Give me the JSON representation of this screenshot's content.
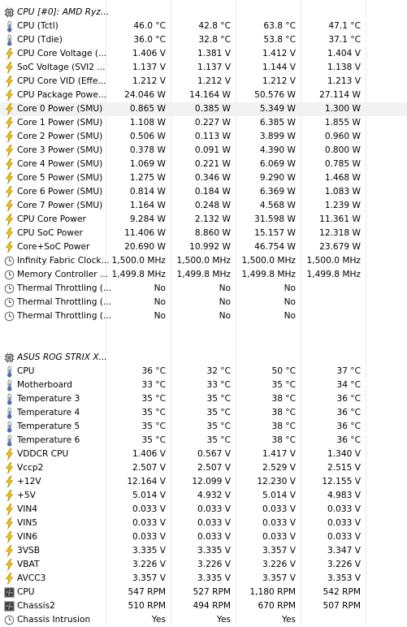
{
  "sections": [
    {
      "title": "CPU [#0]: AMD Ryz...",
      "icon": "chip-icon",
      "rows": [
        {
          "icon": "thermometer-icon",
          "label": "CPU (Tctl)",
          "values": [
            "46.0 °C",
            "42.8 °C",
            "63.8 °C",
            "47.1 °C"
          ]
        },
        {
          "icon": "thermometer-icon",
          "label": "CPU (Tdie)",
          "values": [
            "36.0 °C",
            "32.8 °C",
            "53.8 °C",
            "37.1 °C"
          ]
        },
        {
          "icon": "lightning-icon",
          "label": "CPU Core Voltage (...",
          "values": [
            "1.406 V",
            "1.381 V",
            "1.412 V",
            "1.404 V"
          ]
        },
        {
          "icon": "lightning-icon",
          "label": "SoC Voltage (SVI2 ...",
          "values": [
            "1.137 V",
            "1.137 V",
            "1.144 V",
            "1.138 V"
          ]
        },
        {
          "icon": "lightning-icon",
          "label": "CPU Core VID (Effe...",
          "values": [
            "1.212 V",
            "1.212 V",
            "1.212 V",
            "1.213 V"
          ]
        },
        {
          "icon": "lightning-icon",
          "label": "CPU Package Powe...",
          "values": [
            "24.046 W",
            "14.164 W",
            "50.576 W",
            "27.114 W"
          ]
        },
        {
          "icon": "lightning-icon",
          "label": "Core 0 Power (SMU)",
          "values": [
            "0.865 W",
            "0.385 W",
            "5.349 W",
            "1.300 W"
          ]
        },
        {
          "icon": "lightning-icon",
          "label": "Core 1 Power (SMU)",
          "values": [
            "1.108 W",
            "0.227 W",
            "6.385 W",
            "1.855 W"
          ]
        },
        {
          "icon": "lightning-icon",
          "label": "Core 2 Power (SMU)",
          "values": [
            "0.506 W",
            "0.113 W",
            "3.899 W",
            "0.960 W"
          ]
        },
        {
          "icon": "lightning-icon",
          "label": "Core 3 Power (SMU)",
          "values": [
            "0.378 W",
            "0.091 W",
            "4.390 W",
            "0.800 W"
          ]
        },
        {
          "icon": "lightning-icon",
          "label": "Core 4 Power (SMU)",
          "values": [
            "1.069 W",
            "0.221 W",
            "6.069 W",
            "0.785 W"
          ]
        },
        {
          "icon": "lightning-icon",
          "label": "Core 5 Power (SMU)",
          "values": [
            "1.275 W",
            "0.346 W",
            "9.290 W",
            "1.468 W"
          ]
        },
        {
          "icon": "lightning-icon",
          "label": "Core 6 Power (SMU)",
          "values": [
            "0.814 W",
            "0.184 W",
            "6.369 W",
            "1.083 W"
          ]
        },
        {
          "icon": "lightning-icon",
          "label": "Core 7 Power (SMU)",
          "values": [
            "1.164 W",
            "0.248 W",
            "4.568 W",
            "1.239 W"
          ]
        },
        {
          "icon": "lightning-icon",
          "label": "CPU Core Power",
          "values": [
            "9.284 W",
            "2.132 W",
            "31.598 W",
            "11.361 W"
          ]
        },
        {
          "icon": "lightning-icon",
          "label": "CPU SoC Power",
          "values": [
            "11.406 W",
            "8.860 W",
            "15.157 W",
            "12.318 W"
          ]
        },
        {
          "icon": "lightning-icon",
          "label": "Core+SoC Power",
          "values": [
            "20.690 W",
            "10.992 W",
            "46.754 W",
            "23.679 W"
          ]
        },
        {
          "icon": "clock-icon",
          "label": "Infinity Fabric Clock...",
          "values": [
            "1,500.0 MHz",
            "1,500.0 MHz",
            "1,500.0 MHz",
            "1,500.0 MHz"
          ]
        },
        {
          "icon": "clock-icon",
          "label": "Memory Controller ...",
          "values": [
            "1,499.8 MHz",
            "1,499.8 MHz",
            "1,499.8 MHz",
            "1,499.8 MHz"
          ]
        },
        {
          "icon": "clock-icon",
          "label": "Thermal Throttling (...",
          "values": [
            "No",
            "No",
            "No",
            ""
          ]
        },
        {
          "icon": "clock-icon",
          "label": "Thermal Throttling (...",
          "values": [
            "No",
            "No",
            "No",
            ""
          ]
        },
        {
          "icon": "clock-icon",
          "label": "Thermal Throttling (...",
          "values": [
            "No",
            "No",
            "No",
            ""
          ]
        }
      ]
    },
    {
      "title": "ASUS ROG STRIX X...",
      "icon": "chip-icon",
      "rows": [
        {
          "icon": "thermometer-icon",
          "label": "CPU",
          "values": [
            "36 °C",
            "32 °C",
            "50 °C",
            "37 °C"
          ]
        },
        {
          "icon": "thermometer-icon",
          "label": "Motherboard",
          "values": [
            "33 °C",
            "33 °C",
            "35 °C",
            "34 °C"
          ]
        },
        {
          "icon": "thermometer-icon",
          "label": "Temperature 3",
          "values": [
            "35 °C",
            "35 °C",
            "38 °C",
            "36 °C"
          ]
        },
        {
          "icon": "thermometer-icon",
          "label": "Temperature 4",
          "values": [
            "35 °C",
            "35 °C",
            "38 °C",
            "36 °C"
          ]
        },
        {
          "icon": "thermometer-icon",
          "label": "Temperature 5",
          "values": [
            "35 °C",
            "35 °C",
            "38 °C",
            "36 °C"
          ]
        },
        {
          "icon": "thermometer-icon",
          "label": "Temperature 6",
          "values": [
            "35 °C",
            "35 °C",
            "38 °C",
            "36 °C"
          ]
        },
        {
          "icon": "lightning-icon",
          "label": "VDDCR CPU",
          "values": [
            "1.406 V",
            "0.567 V",
            "1.417 V",
            "1.340 V"
          ]
        },
        {
          "icon": "lightning-icon",
          "label": "Vccp2",
          "values": [
            "2.507 V",
            "2.507 V",
            "2.529 V",
            "2.515 V"
          ]
        },
        {
          "icon": "lightning-icon",
          "label": "+12V",
          "values": [
            "12.164 V",
            "12.099 V",
            "12.230 V",
            "12.155 V"
          ]
        },
        {
          "icon": "lightning-icon",
          "label": "+5V",
          "values": [
            "5.014 V",
            "4.932 V",
            "5.014 V",
            "4.983 V"
          ]
        },
        {
          "icon": "lightning-icon",
          "label": "VIN4",
          "values": [
            "0.033 V",
            "0.033 V",
            "0.033 V",
            "0.033 V"
          ]
        },
        {
          "icon": "lightning-icon",
          "label": "VIN5",
          "values": [
            "0.033 V",
            "0.033 V",
            "0.033 V",
            "0.033 V"
          ]
        },
        {
          "icon": "lightning-icon",
          "label": "VIN6",
          "values": [
            "0.033 V",
            "0.033 V",
            "0.033 V",
            "0.033 V"
          ]
        },
        {
          "icon": "lightning-icon",
          "label": "3VSB",
          "values": [
            "3.335 V",
            "3.335 V",
            "3.357 V",
            "3.347 V"
          ]
        },
        {
          "icon": "lightning-icon",
          "label": "VBAT",
          "values": [
            "3.226 V",
            "3.226 V",
            "3.226 V",
            "3.226 V"
          ]
        },
        {
          "icon": "lightning-icon",
          "label": "AVCC3",
          "values": [
            "3.357 V",
            "3.335 V",
            "3.357 V",
            "3.353 V"
          ]
        },
        {
          "icon": "fan-icon",
          "label": "CPU",
          "values": [
            "547 RPM",
            "527 RPM",
            "1,180 RPM",
            "542 RPM"
          ]
        },
        {
          "icon": "fan-icon",
          "label": "Chassis2",
          "values": [
            "510 RPM",
            "494 RPM",
            "670 RPM",
            "507 RPM"
          ]
        },
        {
          "icon": "clock-icon",
          "label": "Chassis Intrusion",
          "values": [
            "Yes",
            "Yes",
            "Yes",
            ""
          ]
        }
      ]
    }
  ]
}
